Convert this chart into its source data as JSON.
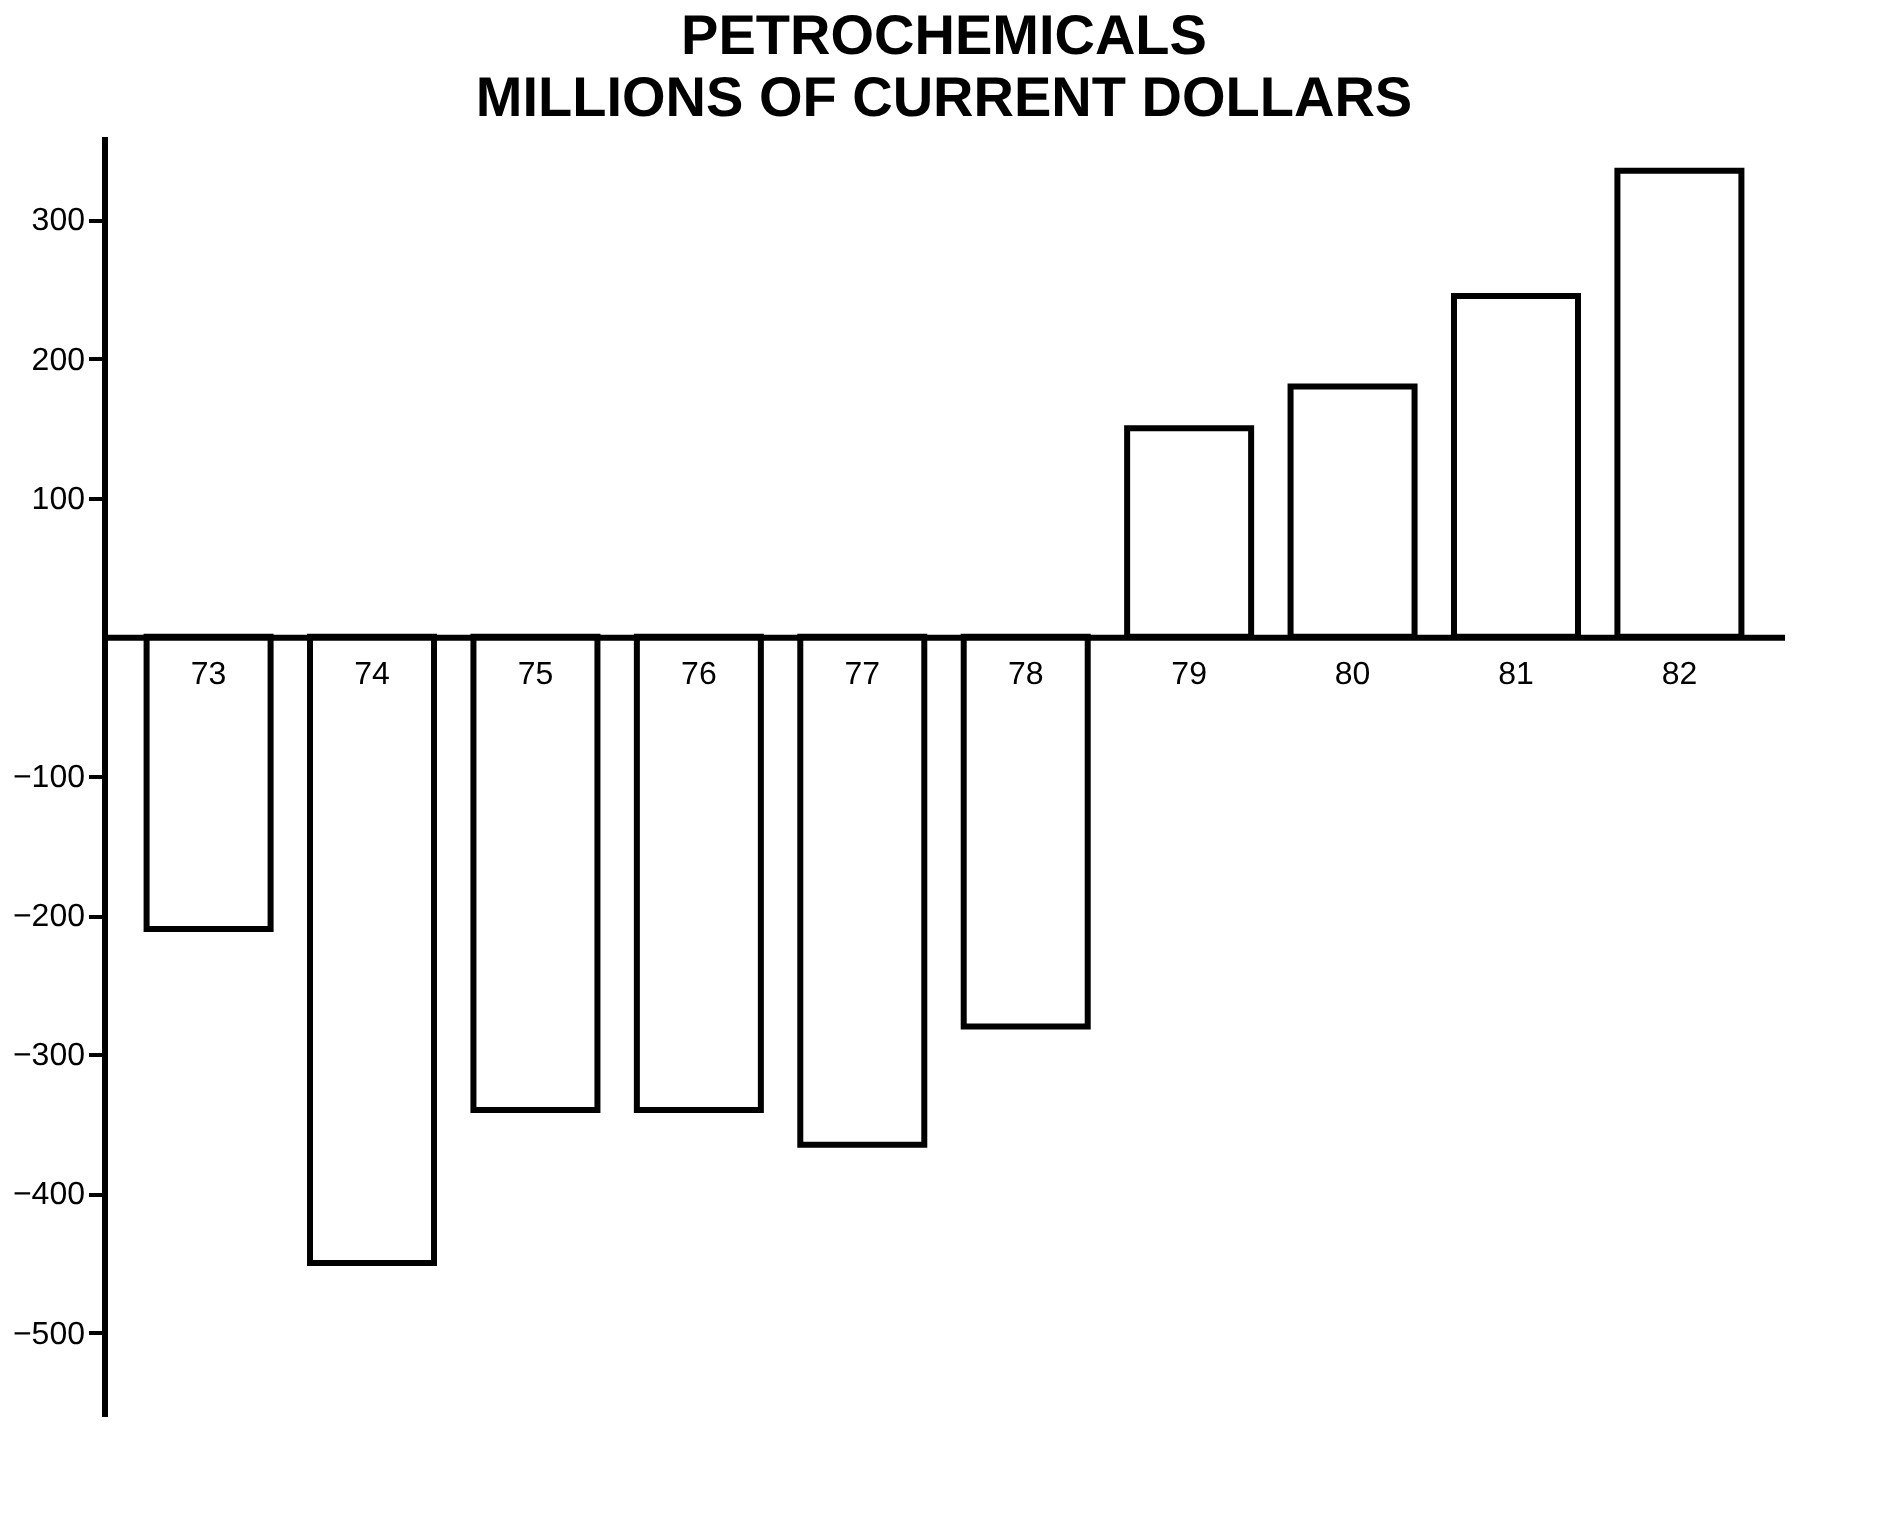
{
  "chart_data": {
    "type": "bar",
    "title": "PETROCHEMICALS",
    "subtitle": "MILLIONS OF CURRENT DOLLARS",
    "categories": [
      "73",
      "74",
      "75",
      "76",
      "77",
      "78",
      "79",
      "80",
      "81",
      "82"
    ],
    "values": [
      -210,
      -450,
      -340,
      -340,
      -365,
      -280,
      150,
      180,
      245,
      335
    ],
    "color": "#ffffff",
    "ylim": [
      -560,
      360
    ],
    "yticks": [
      -500,
      -400,
      -300,
      -200,
      -100,
      100,
      200,
      300
    ],
    "grid": false
  }
}
